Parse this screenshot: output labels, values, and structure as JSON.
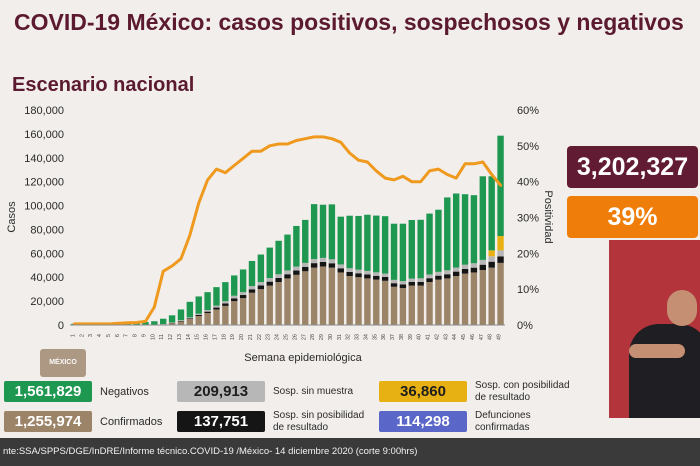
{
  "header": {
    "title": "COVID-19 México: casos positivos, sospechosos y negativos",
    "subtitle": "Escenario nacional"
  },
  "summary": {
    "total": "3,202,327",
    "positivity": "39%"
  },
  "logo_text": "MÉXICO",
  "legend": {
    "negativos_value": "1,561,829",
    "negativos_label": "Negativos",
    "confirmados_value": "1,255,974",
    "confirmados_label": "Confirmados",
    "sin_muestra_value": "209,913",
    "sin_muestra_label": "Sosp. sin muestra",
    "sin_posibilidad_value": "137,751",
    "sin_posibilidad_label_1": "Sosp. sin posibilidad",
    "sin_posibilidad_label_2": "de resultado",
    "con_posibilidad_value": "36,860",
    "con_posibilidad_label_1": "Sosp. con posibilidad",
    "con_posibilidad_label_2": "de resultado",
    "defunciones_value": "114,298",
    "defunciones_label_1": "Defunciones",
    "defunciones_label_2": "confirmadas"
  },
  "footer": {
    "source": "nte:SSA/SPPS/DGE/InDRE/Informe técnico.COVID-19 /México- 14 diciembre 2020 (corte 9:00hrs)"
  },
  "colors": {
    "confirmados": "#9c8468",
    "sin_posibilidad": "#151515",
    "sin_muestra": "#b7b7b7",
    "negativos": "#1e9850",
    "con_posibilidad": "#e8b113",
    "positividad": "#ef9a1e",
    "defunciones": "#5a66c8"
  },
  "chart_data": {
    "type": "bar",
    "stacked": true,
    "title": "Escenario nacional",
    "xlabel": "Semana epidemiológica",
    "ylabel": "Casos",
    "y2label": "Positividad",
    "ylim": [
      0,
      180000
    ],
    "y2lim": [
      0,
      60
    ],
    "yticks": [
      0,
      20000,
      40000,
      60000,
      80000,
      100000,
      120000,
      140000,
      160000,
      180000
    ],
    "ytick_labels": [
      "0",
      "20,000",
      "40,000",
      "60,000",
      "80,000",
      "100,000",
      "120,000",
      "140,000",
      "160,000",
      "180,000"
    ],
    "y2ticks": [
      0,
      10,
      20,
      30,
      40,
      50,
      60
    ],
    "y2tick_labels": [
      "0%",
      "10%",
      "20%",
      "30%",
      "40%",
      "50%",
      "60%"
    ],
    "categories": [
      "1",
      "2",
      "3",
      "4",
      "5",
      "6",
      "7",
      "8",
      "9",
      "10",
      "11",
      "12",
      "13",
      "14",
      "15",
      "16",
      "17",
      "18",
      "19",
      "20",
      "21",
      "22",
      "23",
      "24",
      "25",
      "26",
      "27",
      "28",
      "29",
      "30",
      "31",
      "32",
      "33",
      "34",
      "35",
      "36",
      "37",
      "38",
      "39",
      "40",
      "41",
      "42",
      "43",
      "44",
      "45",
      "46",
      "47",
      "48",
      "49"
    ],
    "series": [
      {
        "name": "Confirmados",
        "values": [
          0,
          0,
          0,
          0,
          0,
          0,
          0,
          0,
          0,
          100,
          500,
          1500,
          3000,
          5000,
          7500,
          10000,
          13000,
          16000,
          20000,
          22500,
          27000,
          30000,
          33000,
          36000,
          39000,
          42000,
          45000,
          48000,
          49000,
          48000,
          44000,
          41000,
          40000,
          39000,
          38000,
          37000,
          32000,
          31000,
          33000,
          33000,
          36000,
          38000,
          39000,
          41000,
          43000,
          44000,
          46000,
          48000,
          52000
        ]
      },
      {
        "name": "Sosp. sin posibilidad de resultado",
        "values": [
          0,
          0,
          0,
          0,
          0,
          0,
          0,
          0,
          0,
          0,
          50,
          200,
          400,
          600,
          900,
          1200,
          1600,
          2000,
          2300,
          2600,
          2900,
          3100,
          3300,
          3400,
          3500,
          3600,
          3700,
          3800,
          3800,
          3700,
          3500,
          3400,
          3300,
          3300,
          3200,
          3200,
          3000,
          3000,
          3000,
          3100,
          3200,
          3300,
          3500,
          3700,
          3900,
          4000,
          4500,
          5000,
          5500
        ]
      },
      {
        "name": "Sosp. sin muestra",
        "values": [
          0,
          0,
          0,
          0,
          0,
          0,
          0,
          0,
          0,
          50,
          200,
          400,
          600,
          800,
          1000,
          1300,
          1600,
          1900,
          2200,
          2400,
          2700,
          2900,
          3000,
          3100,
          3200,
          3300,
          3300,
          3400,
          3400,
          3300,
          3200,
          3100,
          3000,
          3000,
          2900,
          2900,
          2800,
          2800,
          2900,
          3000,
          3100,
          3200,
          3300,
          3400,
          3600,
          3700,
          4000,
          4500,
          5000
        ]
      },
      {
        "name": "Sosp. con posibilidad de resultado",
        "values": [
          0,
          0,
          0,
          0,
          0,
          0,
          0,
          0,
          0,
          0,
          0,
          0,
          0,
          0,
          0,
          0,
          0,
          0,
          0,
          0,
          0,
          0,
          0,
          0,
          0,
          0,
          0,
          0,
          0,
          0,
          0,
          0,
          0,
          0,
          0,
          0,
          0,
          0,
          0,
          0,
          0,
          0,
          0,
          0,
          0,
          0,
          0,
          5000,
          12000
        ]
      },
      {
        "name": "Negativos",
        "values": [
          1000,
          1200,
          1300,
          1500,
          1800,
          2000,
          2100,
          2200,
          2500,
          3000,
          4500,
          6000,
          9000,
          13000,
          14500,
          15000,
          15500,
          16000,
          17000,
          19000,
          21000,
          23000,
          25500,
          28000,
          30000,
          34000,
          36000,
          46000,
          44500,
          46000,
          40000,
          44000,
          45000,
          47000,
          47500,
          48000,
          47000,
          48000,
          49000,
          49000,
          51000,
          52000,
          61000,
          62000,
          59000,
          57000,
          70000,
          62000,
          84000
        ]
      }
    ],
    "positividad": [
      0.3,
      0.3,
      0.3,
      0.3,
      0.3,
      0.5,
      0.6,
      0.7,
      1.0,
      5.0,
      15.0,
      16.5,
      18.5,
      25.0,
      34.0,
      40.5,
      43.5,
      42.5,
      44.5,
      46.5,
      48.5,
      48.5,
      50.0,
      50.5,
      50.5,
      51.5,
      52.0,
      52.5,
      52.5,
      52.0,
      51.0,
      48.0,
      46.0,
      45.5,
      43.0,
      41.0,
      40.5,
      41.5,
      40.0,
      40.0,
      43.0,
      43.5,
      42.0,
      41.0,
      45.0,
      45.0,
      45.5,
      42.0,
      39.0
    ]
  }
}
